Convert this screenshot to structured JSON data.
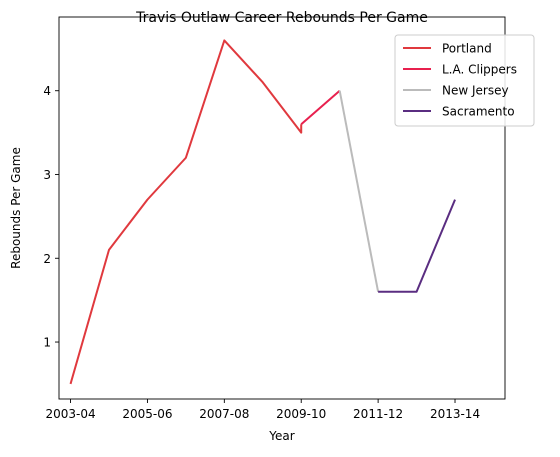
{
  "chart_data": {
    "type": "line",
    "title": "Travis Outlaw Career Rebounds Per Game",
    "xlabel": "Year",
    "ylabel": "Rebounds Per Game",
    "x_ticks": [
      "2003-04",
      "2005-06",
      "2007-08",
      "2009-10",
      "2011-12",
      "2013-14"
    ],
    "y_ticks": [
      1,
      2,
      3,
      4
    ],
    "xlim": [
      2002.7,
      2014.3
    ],
    "ylim": [
      0.32,
      4.88
    ],
    "grid": false,
    "legend_position": "top-right",
    "series": [
      {
        "name": "Portland",
        "color": "#e0393e",
        "x": [
          2003,
          2004,
          2005,
          2006,
          2007,
          2008,
          2009,
          2009
        ],
        "y": [
          0.5,
          2.1,
          2.7,
          3.2,
          4.6,
          4.1,
          3.5,
          3.6
        ]
      },
      {
        "name": "L.A. Clippers",
        "color": "#e8204e",
        "x": [
          2009,
          2010
        ],
        "y": [
          3.6,
          4.0
        ]
      },
      {
        "name": "New Jersey",
        "color": "#bbbbbb",
        "x": [
          2010,
          2011
        ],
        "y": [
          4.0,
          1.6
        ]
      },
      {
        "name": "Sacramento",
        "color": "#5a2d81",
        "x": [
          2011,
          2012,
          2013
        ],
        "y": [
          1.6,
          1.6,
          2.7
        ]
      }
    ]
  }
}
